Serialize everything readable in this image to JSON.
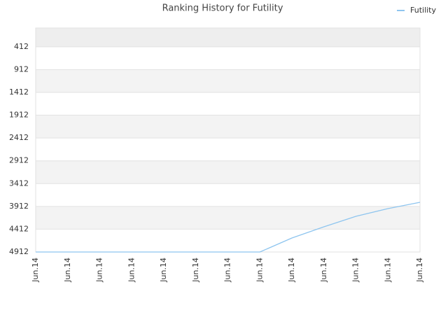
{
  "chart_data": {
    "type": "line",
    "title": "Ranking History for Futility",
    "categories": [
      "Jun.14",
      "Jun.14",
      "Jun.14",
      "Jun.14",
      "Jun.14",
      "Jun.14",
      "Jun.14",
      "Jun.14",
      "Jun.14",
      "Jun.14",
      "Jun.14",
      "Jun.14",
      "Jun.14"
    ],
    "series": [
      {
        "name": "Futility",
        "color": "#8ec5ef",
        "values": [
          4912,
          4912,
          4912,
          4912,
          4912,
          4912,
          4912,
          4912,
          4605,
          4359,
          4129,
          3960,
          3822
        ]
      }
    ],
    "ylim": [
      4912,
      0
    ],
    "yticks": [
      412,
      912,
      1412,
      1912,
      2412,
      2912,
      3412,
      3912,
      4412,
      4912
    ],
    "grid": true,
    "legend": "top-right"
  }
}
